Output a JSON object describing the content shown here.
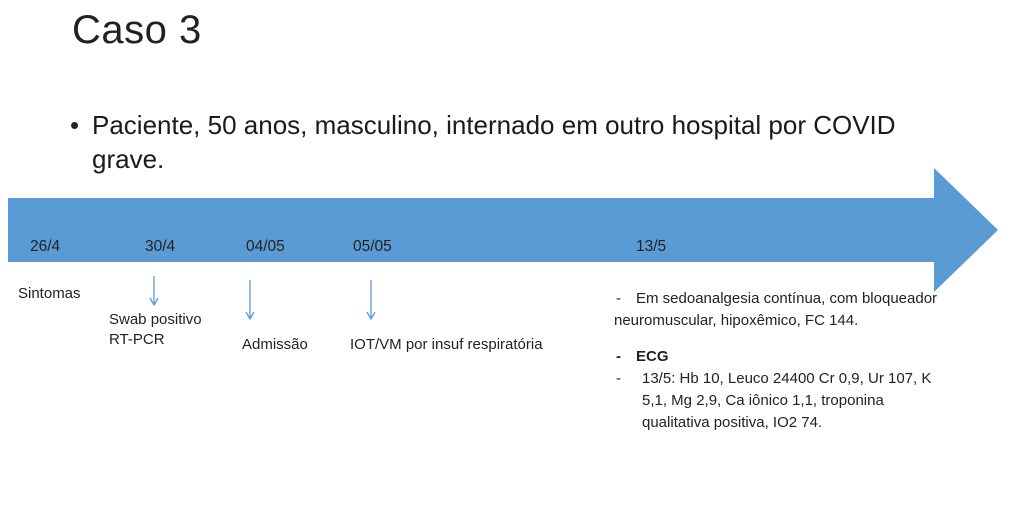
{
  "slide": {
    "title": "Caso 3",
    "bullet": "Paciente, 50 anos, masculino, internado em outro hospital por COVID grave."
  },
  "timeline": {
    "color": "#5B9BD5",
    "dates": [
      "26/4",
      "30/4",
      "04/05",
      "05/05",
      "13/5"
    ],
    "events": {
      "sintomas": "Sintomas",
      "swab_line1": "Swab positivo",
      "swab_line2": "RT-PCR",
      "admissao": "Admissão",
      "iot": "IOT/VM por insuf respiratória"
    }
  },
  "notes": {
    "dash": "-",
    "sedo_line1": "Em sedoanalgesia contínua, com bloqueador",
    "sedo_line2": "neuromuscular, hipoxêmico, FC 144.",
    "ecg": "ECG",
    "labs_line1": "13/5: Hb 10, Leuco 24400 Cr 0,9, Ur 107,  K",
    "labs_line2": "5,1, Mg 2,9, Ca iônico 1,1, troponina",
    "labs_line3": "qualitativa positiva, IO2 74."
  }
}
